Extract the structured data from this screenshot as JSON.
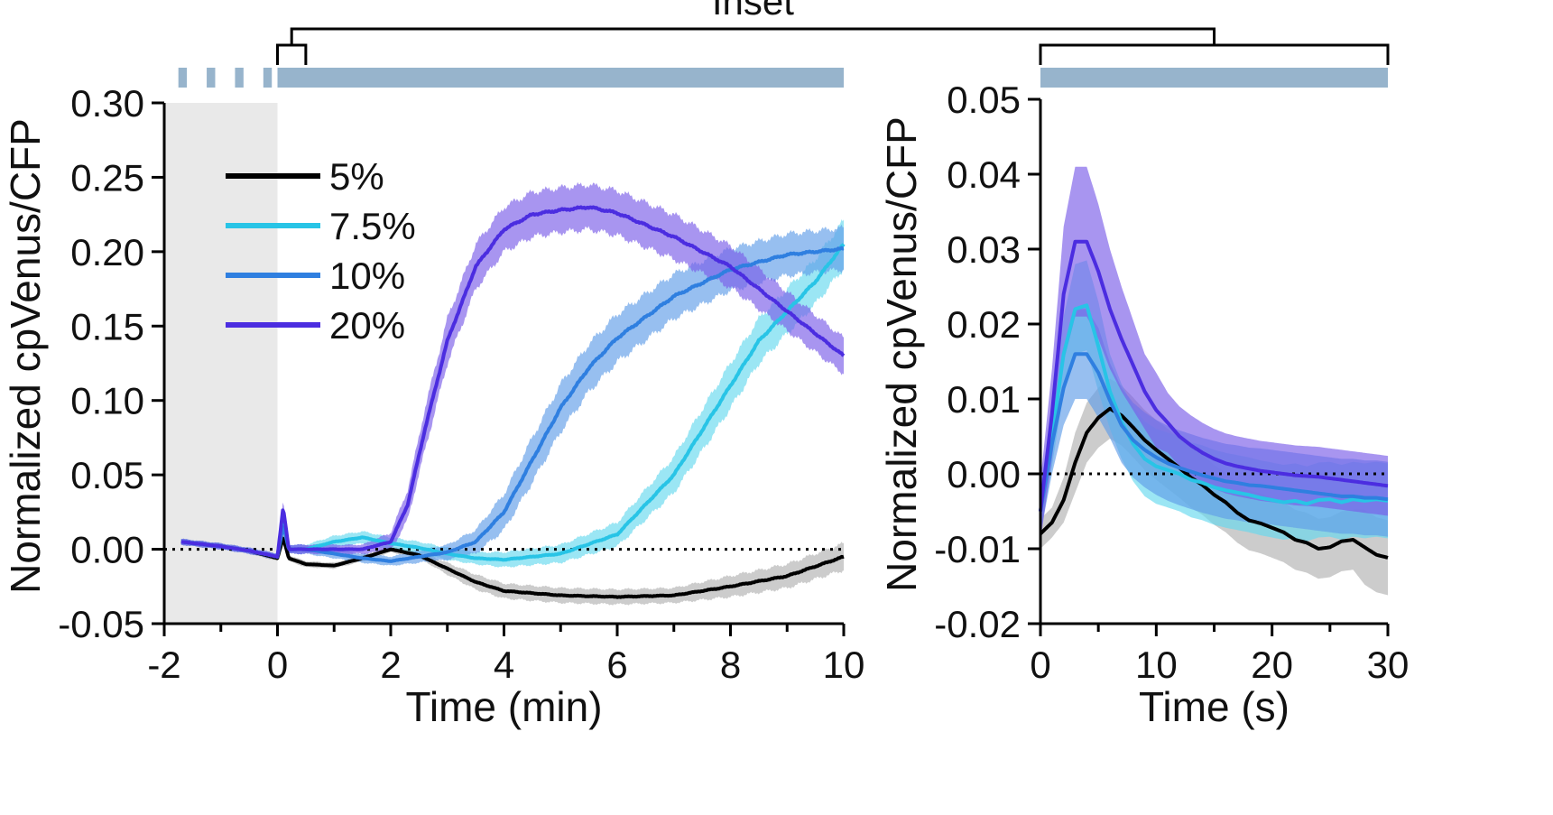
{
  "colors": {
    "c5": "#000000",
    "c75": "#28c4e6",
    "c10": "#2f7fe0",
    "c20": "#4b2de0",
    "band5": "#b0b0b0",
    "band75": "#66d8ee",
    "band10": "#5f9de8",
    "band20": "#7a5ce8",
    "shade": "#e9e9e9",
    "stimBar": "#97b4cc"
  },
  "inset_label": "Inset",
  "chart_data": [
    {
      "type": "line",
      "name": "time-course",
      "xlabel": "Time (min)",
      "ylabel": "Normalized cpVenus/CFP",
      "xlim": [
        -2,
        10
      ],
      "ylim": [
        -0.05,
        0.3
      ],
      "xticks": [
        -2,
        0,
        2,
        4,
        6,
        8,
        10
      ],
      "xtick_labels": [
        "-2",
        "0",
        "2",
        "4",
        "6",
        "8",
        "10"
      ],
      "yticks": [
        -0.05,
        0.0,
        0.05,
        0.1,
        0.15,
        0.2,
        0.25,
        0.3
      ],
      "ytick_labels": [
        "-0.05",
        "0.00",
        "0.05",
        "0.10",
        "0.15",
        "0.20",
        "0.25",
        "0.30"
      ],
      "baseline": 0,
      "shaded_region": [
        -2,
        0
      ],
      "stim_dashes": [
        [
          -1.75,
          -1.6
        ],
        [
          -1.25,
          -1.1
        ],
        [
          -0.75,
          -0.6
        ],
        [
          -0.25,
          -0.1
        ]
      ],
      "stim_bar": [
        0,
        10
      ],
      "inset_window": [
        0,
        0.5
      ],
      "legend": [
        "5%",
        "7.5%",
        "10%",
        "20%"
      ],
      "series": [
        {
          "name": "5%",
          "color_key": "c5",
          "band_key": "band5",
          "x": [
            -1.7,
            -1.0,
            -0.5,
            0.0,
            0.1,
            0.2,
            0.5,
            1.0,
            1.5,
            2.0,
            2.5,
            3.0,
            3.5,
            4.0,
            5.0,
            6.0,
            7.0,
            8.0,
            9.0,
            10.0
          ],
          "y": [
            0.005,
            0.002,
            -0.001,
            -0.006,
            0.008,
            -0.006,
            -0.01,
            -0.011,
            -0.006,
            0.0,
            -0.004,
            -0.013,
            -0.022,
            -0.028,
            -0.031,
            -0.032,
            -0.031,
            -0.025,
            -0.018,
            -0.005
          ],
          "err": [
            0.002,
            0.002,
            0.002,
            0.002,
            0.003,
            0.002,
            0.002,
            0.002,
            0.002,
            0.002,
            0.002,
            0.004,
            0.005,
            0.005,
            0.005,
            0.005,
            0.005,
            0.007,
            0.008,
            0.009
          ]
        },
        {
          "name": "7.5%",
          "color_key": "c75",
          "band_key": "band75",
          "x": [
            -1.7,
            -1.0,
            -0.5,
            0.0,
            0.1,
            0.2,
            0.5,
            1.0,
            1.5,
            2.0,
            2.5,
            3.0,
            3.5,
            4.0,
            5.0,
            6.0,
            7.0,
            7.5,
            8.0,
            8.5,
            9.0,
            9.5,
            10.0
          ],
          "y": [
            0.005,
            0.002,
            -0.001,
            -0.005,
            0.022,
            0.0,
            0.0,
            0.005,
            0.008,
            0.004,
            0.001,
            -0.003,
            -0.006,
            -0.007,
            -0.003,
            0.01,
            0.05,
            0.08,
            0.11,
            0.14,
            0.16,
            0.18,
            0.205
          ],
          "err": [
            0.002,
            0.002,
            0.002,
            0.002,
            0.004,
            0.003,
            0.003,
            0.004,
            0.004,
            0.004,
            0.004,
            0.004,
            0.004,
            0.005,
            0.006,
            0.008,
            0.012,
            0.014,
            0.015,
            0.015,
            0.015,
            0.015,
            0.016
          ]
        },
        {
          "name": "10%",
          "color_key": "c10",
          "band_key": "band10",
          "x": [
            -1.7,
            -1.0,
            -0.5,
            0.0,
            0.1,
            0.2,
            0.5,
            1.0,
            1.5,
            2.0,
            2.5,
            3.0,
            3.5,
            4.0,
            4.5,
            5.0,
            5.5,
            6.0,
            7.0,
            8.0,
            9.0,
            10.0
          ],
          "y": [
            0.005,
            0.002,
            -0.001,
            -0.005,
            0.016,
            0.0,
            0.0,
            -0.003,
            -0.006,
            -0.008,
            -0.005,
            -0.002,
            0.005,
            0.025,
            0.06,
            0.095,
            0.122,
            0.142,
            0.17,
            0.188,
            0.198,
            0.202
          ],
          "err": [
            0.002,
            0.002,
            0.002,
            0.002,
            0.004,
            0.003,
            0.003,
            0.003,
            0.003,
            0.003,
            0.004,
            0.005,
            0.008,
            0.012,
            0.015,
            0.016,
            0.016,
            0.016,
            0.015,
            0.014,
            0.014,
            0.014
          ]
        },
        {
          "name": "20%",
          "color_key": "c20",
          "band_key": "band20",
          "x": [
            -1.7,
            -1.0,
            -0.5,
            0.0,
            0.1,
            0.2,
            0.5,
            1.0,
            1.5,
            2.0,
            2.3,
            2.6,
            3.0,
            3.5,
            4.0,
            4.5,
            5.0,
            5.5,
            6.0,
            7.0,
            8.0,
            9.0,
            10.0
          ],
          "y": [
            0.005,
            0.002,
            -0.001,
            -0.005,
            0.028,
            0.0,
            0.0,
            0.0,
            0.0,
            0.005,
            0.03,
            0.08,
            0.14,
            0.19,
            0.215,
            0.225,
            0.228,
            0.23,
            0.226,
            0.21,
            0.19,
            0.16,
            0.13
          ],
          "err": [
            0.002,
            0.002,
            0.002,
            0.002,
            0.005,
            0.003,
            0.003,
            0.003,
            0.003,
            0.006,
            0.01,
            0.014,
            0.015,
            0.015,
            0.015,
            0.015,
            0.015,
            0.015,
            0.015,
            0.015,
            0.014,
            0.013,
            0.012
          ]
        }
      ]
    },
    {
      "type": "line",
      "name": "inset",
      "xlabel": "Time (s)",
      "ylabel": "Normalized cpVenus/CFP",
      "xlim": [
        0,
        30
      ],
      "ylim": [
        -0.02,
        0.05
      ],
      "xticks": [
        0,
        10,
        20,
        30
      ],
      "xtick_labels": [
        "0",
        "10",
        "20",
        "30"
      ],
      "minor_xticks": [
        5,
        15,
        25
      ],
      "yticks": [
        -0.02,
        -0.01,
        0.0,
        0.01,
        0.02,
        0.03,
        0.04,
        0.05
      ],
      "ytick_labels": [
        "-0.02",
        "-0.01",
        "0.00",
        "0.01",
        "0.02",
        "0.03",
        "0.04",
        "0.05"
      ],
      "baseline": 0,
      "stim_bar": [
        0,
        30
      ],
      "series": [
        {
          "name": "5%",
          "color_key": "c5",
          "band_key": "band5",
          "x": [
            0,
            1,
            2,
            3,
            4,
            5,
            6,
            7,
            8,
            9,
            10,
            11,
            12,
            13,
            14,
            15,
            16,
            17,
            18,
            19,
            20,
            21,
            22,
            23,
            24,
            25,
            26,
            27,
            28,
            29,
            30
          ],
          "y": [
            -0.008,
            -0.0065,
            -0.0035,
            0.0015,
            0.0055,
            0.0075,
            0.0087,
            0.0078,
            0.0062,
            0.0045,
            0.0032,
            0.002,
            0.0008,
            -0.0005,
            -0.0015,
            -0.0028,
            -0.0038,
            -0.0052,
            -0.0062,
            -0.0066,
            -0.0072,
            -0.0078,
            -0.0088,
            -0.0092,
            -0.01,
            -0.0098,
            -0.009,
            -0.0088,
            -0.0098,
            -0.0108,
            -0.0112
          ],
          "err": [
            0.002,
            0.002,
            0.003,
            0.004,
            0.004,
            0.004,
            0.004,
            0.004,
            0.004,
            0.004,
            0.004,
            0.004,
            0.004,
            0.004,
            0.004,
            0.004,
            0.004,
            0.004,
            0.004,
            0.004,
            0.004,
            0.004,
            0.004,
            0.004,
            0.004,
            0.004,
            0.004,
            0.004,
            0.005,
            0.005,
            0.005
          ]
        },
        {
          "name": "7.5%",
          "color_key": "c75",
          "band_key": "band75",
          "x": [
            0,
            1,
            2,
            3,
            4,
            5,
            6,
            7,
            8,
            9,
            10,
            11,
            12,
            13,
            14,
            15,
            16,
            17,
            18,
            19,
            20,
            21,
            22,
            23,
            24,
            25,
            26,
            27,
            28,
            29,
            30
          ],
          "y": [
            -0.005,
            0.005,
            0.016,
            0.022,
            0.0225,
            0.017,
            0.011,
            0.007,
            0.004,
            0.002,
            0.001,
            0.0005,
            0.0,
            -0.0008,
            -0.0012,
            -0.0018,
            -0.0022,
            -0.0025,
            -0.0028,
            -0.0032,
            -0.0035,
            -0.0038,
            -0.0036,
            -0.004,
            -0.0035,
            -0.0034,
            -0.0038,
            -0.0034,
            -0.0036,
            -0.0034,
            -0.0036
          ],
          "err": [
            0.003,
            0.004,
            0.005,
            0.006,
            0.006,
            0.006,
            0.005,
            0.005,
            0.005,
            0.005,
            0.005,
            0.005,
            0.005,
            0.005,
            0.005,
            0.005,
            0.005,
            0.005,
            0.005,
            0.005,
            0.005,
            0.005,
            0.005,
            0.005,
            0.005,
            0.005,
            0.005,
            0.005,
            0.005,
            0.005,
            0.005
          ]
        },
        {
          "name": "10%",
          "color_key": "c10",
          "band_key": "band10",
          "x": [
            0,
            1,
            2,
            3,
            4,
            5,
            6,
            7,
            8,
            9,
            10,
            11,
            12,
            13,
            14,
            15,
            16,
            17,
            18,
            19,
            20,
            21,
            22,
            23,
            24,
            25,
            26,
            27,
            28,
            29,
            30
          ],
          "y": [
            -0.005,
            0.004,
            0.0115,
            0.016,
            0.016,
            0.0135,
            0.0098,
            0.0065,
            0.0045,
            0.0032,
            0.0022,
            0.0014,
            0.0008,
            0.0003,
            -0.0002,
            -0.0006,
            -0.001,
            -0.0012,
            -0.0015,
            -0.0016,
            -0.0018,
            -0.002,
            -0.0022,
            -0.0024,
            -0.0026,
            -0.0028,
            -0.003,
            -0.003,
            -0.0032,
            -0.0032,
            -0.0034
          ],
          "err": [
            0.003,
            0.004,
            0.005,
            0.006,
            0.006,
            0.006,
            0.005,
            0.005,
            0.005,
            0.005,
            0.005,
            0.005,
            0.005,
            0.005,
            0.005,
            0.005,
            0.005,
            0.005,
            0.005,
            0.005,
            0.005,
            0.005,
            0.005,
            0.005,
            0.005,
            0.005,
            0.005,
            0.005,
            0.005,
            0.005,
            0.005
          ]
        },
        {
          "name": "20%",
          "color_key": "c20",
          "band_key": "band20",
          "x": [
            0,
            1,
            2,
            3,
            4,
            5,
            6,
            7,
            8,
            9,
            10,
            11,
            12,
            13,
            14,
            15,
            16,
            17,
            18,
            19,
            20,
            21,
            22,
            23,
            24,
            25,
            26,
            27,
            28,
            29,
            30
          ],
          "y": [
            -0.005,
            0.008,
            0.024,
            0.031,
            0.031,
            0.027,
            0.022,
            0.018,
            0.0145,
            0.011,
            0.0085,
            0.0068,
            0.005,
            0.0038,
            0.0028,
            0.002,
            0.0014,
            0.001,
            0.0007,
            0.0004,
            0.0002,
            0.0,
            -0.0002,
            -0.0003,
            -0.0004,
            -0.0006,
            -0.0008,
            -0.001,
            -0.0012,
            -0.0014,
            -0.0016
          ],
          "err": [
            0.004,
            0.006,
            0.009,
            0.01,
            0.01,
            0.009,
            0.008,
            0.007,
            0.006,
            0.005,
            0.005,
            0.004,
            0.004,
            0.004,
            0.004,
            0.004,
            0.004,
            0.004,
            0.004,
            0.004,
            0.004,
            0.004,
            0.004,
            0.004,
            0.004,
            0.004,
            0.004,
            0.004,
            0.004,
            0.004,
            0.004
          ]
        }
      ]
    }
  ]
}
